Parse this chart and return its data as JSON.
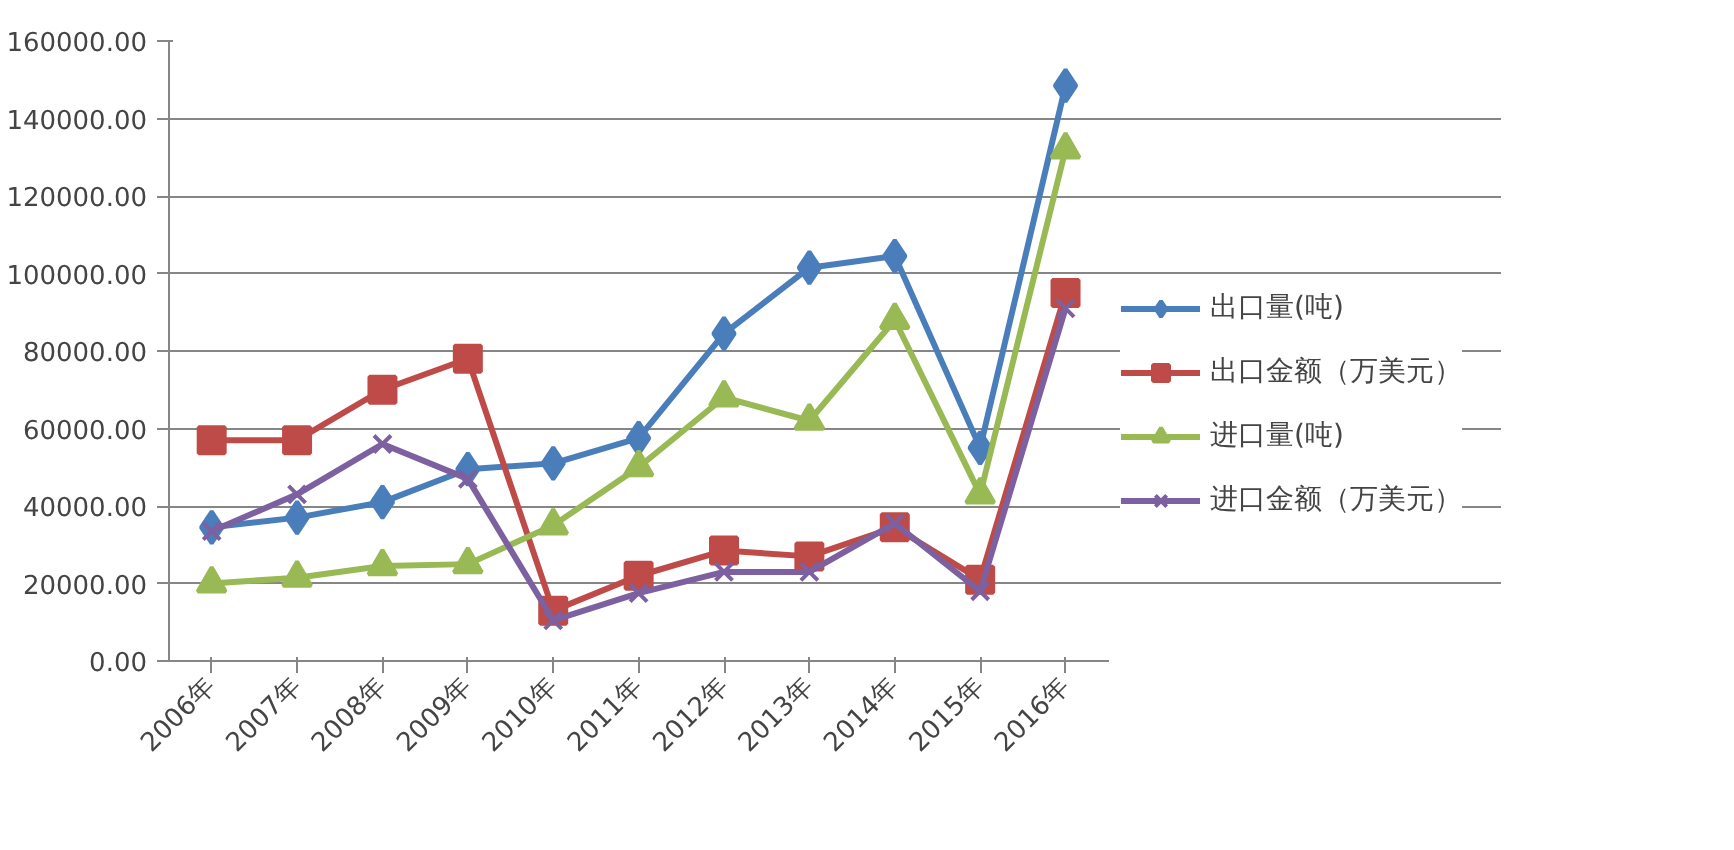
{
  "chart_data": {
    "type": "line",
    "categories": [
      "2006年",
      "2007年",
      "2008年",
      "2009年",
      "2010年",
      "2011年",
      "2012年",
      "2013年",
      "2014年",
      "2015年",
      "2016年"
    ],
    "ylim": [
      0,
      160000
    ],
    "yticks": [
      {
        "value": 0,
        "label": "0.00"
      },
      {
        "value": 20000,
        "label": "20000.00"
      },
      {
        "value": 40000,
        "label": "40000.00"
      },
      {
        "value": 60000,
        "label": "60000.00"
      },
      {
        "value": 80000,
        "label": "80000.00"
      },
      {
        "value": 100000,
        "label": "100000.00"
      },
      {
        "value": 120000,
        "label": "120000.00"
      },
      {
        "value": 140000,
        "label": "140000.00"
      },
      {
        "value": 160000,
        "label": "160000.00"
      }
    ],
    "grid": "y",
    "legend": "right",
    "series": [
      {
        "name": "出口量(吨)",
        "color": "#4a7ebb",
        "marker": "diamond",
        "values": [
          34500,
          37000,
          41000,
          49500,
          51000,
          57500,
          84500,
          101500,
          104500,
          55000,
          148500
        ]
      },
      {
        "name": "出口金额（万美元）",
        "color": "#be4b48",
        "marker": "square",
        "values": [
          57000,
          57000,
          70000,
          78000,
          13000,
          22000,
          28500,
          27000,
          34500,
          21000,
          95000
        ]
      },
      {
        "name": "进口量(吨)",
        "color": "#98b954",
        "marker": "triangle",
        "values": [
          20000,
          21500,
          24500,
          25000,
          35000,
          50000,
          68000,
          62000,
          88000,
          43000,
          132000
        ]
      },
      {
        "name": "进口金额（万美元）",
        "color": "#7d60a0",
        "marker": "cross",
        "values": [
          33500,
          43000,
          56000,
          47000,
          10500,
          17500,
          23000,
          23000,
          35500,
          18000,
          91000
        ]
      }
    ]
  }
}
